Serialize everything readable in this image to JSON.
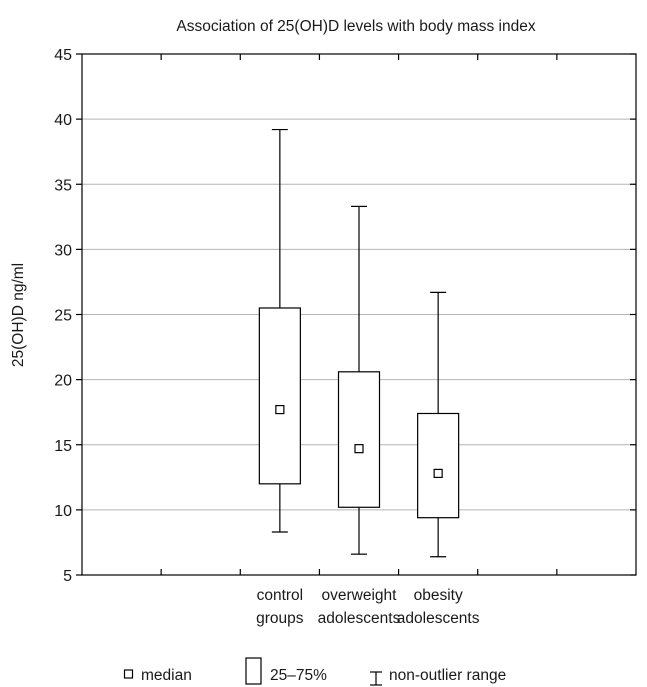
{
  "chart_data": {
    "type": "boxplot",
    "title": "Association of 25(OH)D levels with body mass index",
    "ylabel": "25(OH)D ng/ml",
    "xlabel": "",
    "ylim": [
      5,
      45
    ],
    "yticks": [
      5,
      10,
      15,
      20,
      25,
      30,
      35,
      40,
      45
    ],
    "grid": true,
    "legend_position": "bottom",
    "categories": [
      {
        "line1": "control",
        "line2": "groups"
      },
      {
        "line1": "overweight",
        "line2": "adolescents"
      },
      {
        "line1": "obesity",
        "line2": "adolescents"
      }
    ],
    "groups": [
      {
        "median": 17.7,
        "q1": 12.0,
        "q3": 25.5,
        "min": 8.3,
        "max": 39.2
      },
      {
        "median": 14.7,
        "q1": 10.2,
        "q3": 20.6,
        "min": 6.6,
        "max": 33.3
      },
      {
        "median": 12.8,
        "q1": 9.4,
        "q3": 17.4,
        "min": 6.4,
        "max": 26.7
      }
    ],
    "legend": {
      "median": "median",
      "box": "25–75%",
      "whisker": "non-outlier range"
    }
  }
}
